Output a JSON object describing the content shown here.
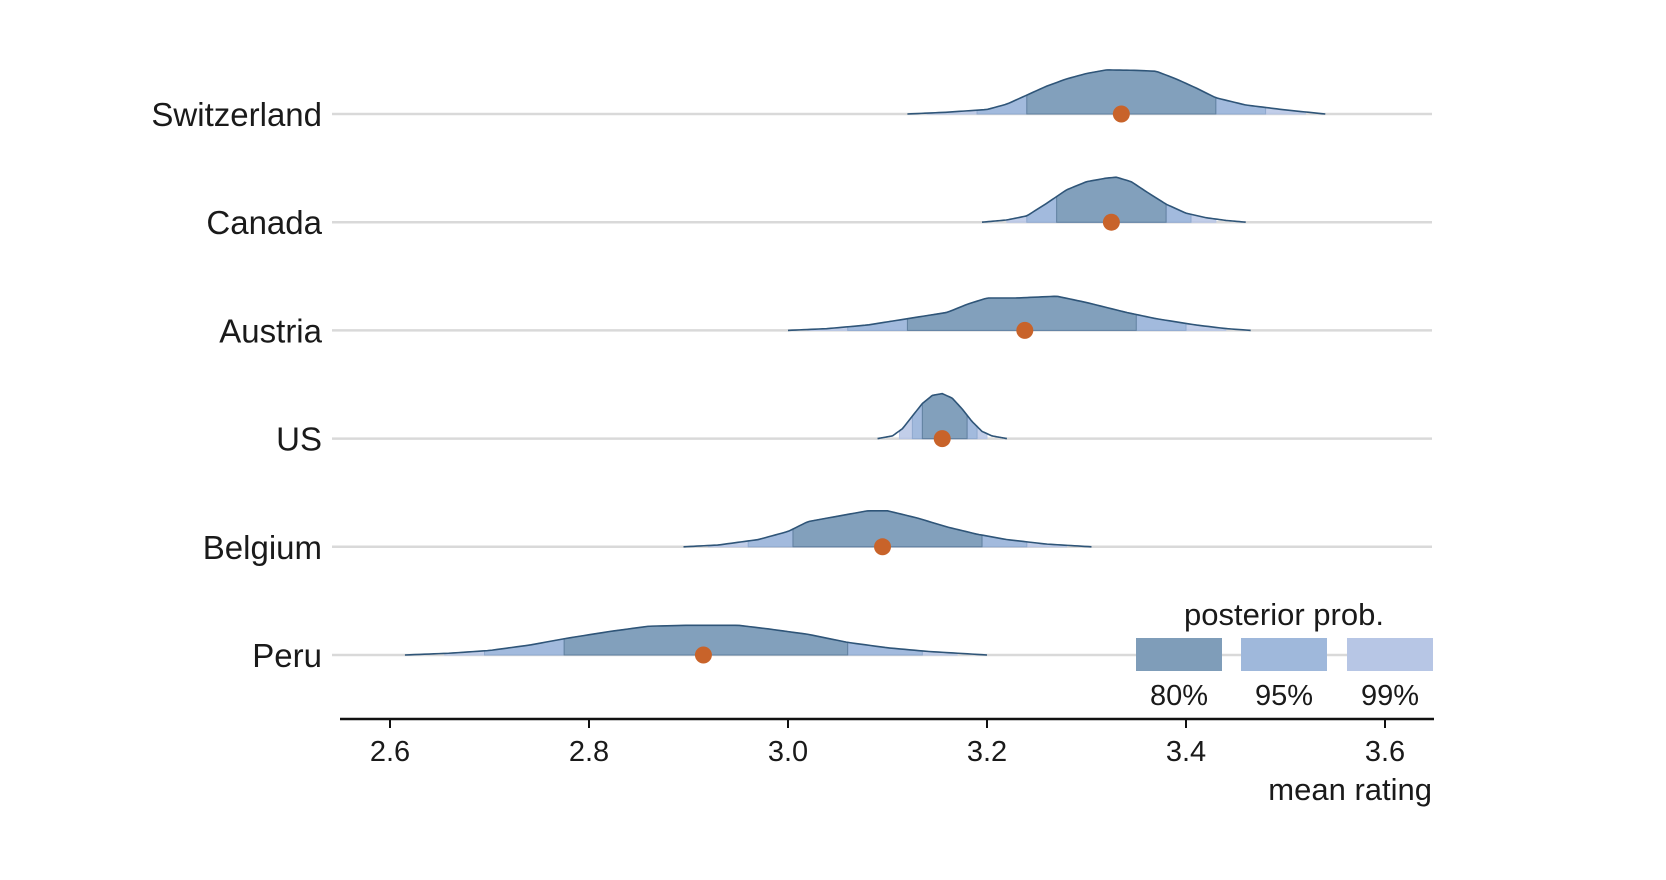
{
  "chart_data": {
    "type": "ridgeline",
    "xlabel": "mean rating",
    "xlim": [
      2.55,
      3.65
    ],
    "xticks": [
      2.6,
      2.8,
      3.0,
      3.2,
      3.4,
      3.6
    ],
    "tick_labels": [
      "2.6",
      "2.8",
      "3.0",
      "3.2",
      "3.4",
      "3.6"
    ],
    "legend": {
      "title": "posterior prob.",
      "placement": "bottom-right",
      "items": [
        {
          "label": "80%",
          "color": "#7f9db9"
        },
        {
          "label": "95%",
          "color": "#9fb8db"
        },
        {
          "label": "99%",
          "color": "#b7c6e5"
        }
      ]
    },
    "colors": {
      "outline": "#2f5578",
      "point": "#c8632a",
      "baseline": "#d9d9d9",
      "axis": "#111111"
    },
    "series": [
      {
        "name": "Switzerland",
        "point": 3.335,
        "range": [
          3.12,
          3.54
        ],
        "intervals": {
          "80": [
            3.24,
            3.43
          ],
          "95": [
            3.19,
            3.48
          ],
          "99": [
            3.14,
            3.52
          ]
        },
        "curve": [
          [
            3.12,
            0.0
          ],
          [
            3.16,
            0.04
          ],
          [
            3.2,
            0.1
          ],
          [
            3.22,
            0.22
          ],
          [
            3.24,
            0.42
          ],
          [
            3.26,
            0.62
          ],
          [
            3.28,
            0.78
          ],
          [
            3.3,
            0.9
          ],
          [
            3.32,
            0.98
          ],
          [
            3.35,
            0.97
          ],
          [
            3.37,
            0.95
          ],
          [
            3.39,
            0.78
          ],
          [
            3.41,
            0.58
          ],
          [
            3.43,
            0.36
          ],
          [
            3.46,
            0.2
          ],
          [
            3.5,
            0.09
          ],
          [
            3.54,
            0.0
          ]
        ]
      },
      {
        "name": "Canada",
        "point": 3.325,
        "range": [
          3.195,
          3.46
        ],
        "intervals": {
          "80": [
            3.27,
            3.38
          ],
          "95": [
            3.24,
            3.405
          ],
          "99": [
            3.22,
            3.43
          ]
        },
        "curve": [
          [
            3.195,
            0.0
          ],
          [
            3.22,
            0.05
          ],
          [
            3.24,
            0.14
          ],
          [
            3.26,
            0.42
          ],
          [
            3.28,
            0.72
          ],
          [
            3.3,
            0.9
          ],
          [
            3.32,
            0.98
          ],
          [
            3.33,
            1.0
          ],
          [
            3.345,
            0.9
          ],
          [
            3.36,
            0.68
          ],
          [
            3.38,
            0.4
          ],
          [
            3.4,
            0.2
          ],
          [
            3.42,
            0.1
          ],
          [
            3.44,
            0.04
          ],
          [
            3.46,
            0.0
          ]
        ]
      },
      {
        "name": "Austria",
        "point": 3.238,
        "range": [
          3.0,
          3.465
        ],
        "intervals": {
          "80": [
            3.12,
            3.35
          ],
          "95": [
            3.06,
            3.4
          ],
          "99": [
            3.02,
            3.44
          ]
        },
        "curve": [
          [
            3.0,
            0.0
          ],
          [
            3.04,
            0.04
          ],
          [
            3.08,
            0.12
          ],
          [
            3.12,
            0.26
          ],
          [
            3.16,
            0.4
          ],
          [
            3.18,
            0.58
          ],
          [
            3.2,
            0.72
          ],
          [
            3.23,
            0.72
          ],
          [
            3.27,
            0.76
          ],
          [
            3.3,
            0.62
          ],
          [
            3.34,
            0.4
          ],
          [
            3.37,
            0.26
          ],
          [
            3.41,
            0.12
          ],
          [
            3.44,
            0.04
          ],
          [
            3.465,
            0.0
          ]
        ]
      },
      {
        "name": "US",
        "point": 3.155,
        "range": [
          3.09,
          3.22
        ],
        "intervals": {
          "80": [
            3.135,
            3.18
          ],
          "95": [
            3.125,
            3.19
          ],
          "99": [
            3.112,
            3.2
          ]
        },
        "curve": [
          [
            3.09,
            0.0
          ],
          [
            3.105,
            0.06
          ],
          [
            3.115,
            0.22
          ],
          [
            3.125,
            0.5
          ],
          [
            3.135,
            0.78
          ],
          [
            3.145,
            0.96
          ],
          [
            3.155,
            1.0
          ],
          [
            3.165,
            0.9
          ],
          [
            3.175,
            0.66
          ],
          [
            3.185,
            0.38
          ],
          [
            3.195,
            0.16
          ],
          [
            3.205,
            0.06
          ],
          [
            3.22,
            0.0
          ]
        ]
      },
      {
        "name": "Belgium",
        "point": 3.095,
        "range": [
          2.895,
          3.305
        ],
        "intervals": {
          "80": [
            3.005,
            3.195
          ],
          "95": [
            2.96,
            3.24
          ],
          "99": [
            2.92,
            3.28
          ]
        },
        "curve": [
          [
            2.895,
            0.0
          ],
          [
            2.93,
            0.04
          ],
          [
            2.97,
            0.16
          ],
          [
            3.0,
            0.34
          ],
          [
            3.02,
            0.56
          ],
          [
            3.05,
            0.68
          ],
          [
            3.08,
            0.8
          ],
          [
            3.1,
            0.8
          ],
          [
            3.13,
            0.64
          ],
          [
            3.16,
            0.44
          ],
          [
            3.19,
            0.28
          ],
          [
            3.22,
            0.16
          ],
          [
            3.26,
            0.06
          ],
          [
            3.305,
            0.0
          ]
        ]
      },
      {
        "name": "Peru",
        "point": 2.915,
        "range": [
          2.615,
          3.2
        ],
        "intervals": {
          "80": [
            2.775,
            3.06
          ],
          "95": [
            2.695,
            3.135
          ],
          "99": [
            2.655,
            3.17
          ]
        },
        "curve": [
          [
            2.615,
            0.0
          ],
          [
            2.66,
            0.04
          ],
          [
            2.7,
            0.1
          ],
          [
            2.74,
            0.22
          ],
          [
            2.78,
            0.38
          ],
          [
            2.82,
            0.52
          ],
          [
            2.86,
            0.64
          ],
          [
            2.9,
            0.66
          ],
          [
            2.95,
            0.66
          ],
          [
            2.98,
            0.58
          ],
          [
            3.02,
            0.46
          ],
          [
            3.06,
            0.28
          ],
          [
            3.1,
            0.16
          ],
          [
            3.14,
            0.08
          ],
          [
            3.2,
            0.0
          ]
        ]
      }
    ]
  }
}
